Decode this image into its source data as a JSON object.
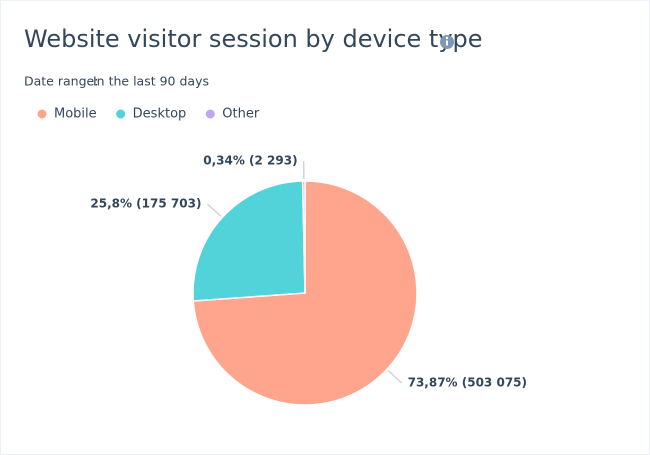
{
  "chart_data": {
    "type": "pie",
    "title": "Website visitor session by device type",
    "date_range_label": "Date range:",
    "date_range": "In the last 90 days",
    "categories": [
      "Mobile",
      "Desktop",
      "Other"
    ],
    "values": [
      503075,
      175703,
      2293
    ],
    "value_labels": [
      "73,87% (503 075)",
      "25,8% (175 703)",
      "0,34% (2 293)"
    ],
    "colors": [
      "#ffa58e",
      "#51d3d9",
      "#bea7f0"
    ]
  }
}
